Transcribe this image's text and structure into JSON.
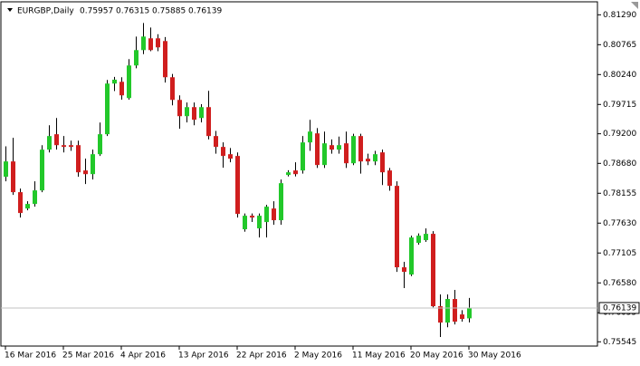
{
  "chart_data": {
    "type": "candlestick",
    "title": "EURGBP,Daily",
    "categories": [
      "16 Mar 2016",
      null,
      null,
      null,
      null,
      null,
      null,
      null,
      "25 Mar 2016",
      null,
      null,
      null,
      null,
      null,
      null,
      null,
      "4 Apr 2016",
      null,
      null,
      null,
      null,
      null,
      null,
      null,
      "13 Apr 2016",
      null,
      null,
      null,
      null,
      null,
      null,
      null,
      "22 Apr 2016",
      null,
      null,
      null,
      null,
      null,
      null,
      null,
      "2 May 2016",
      null,
      null,
      null,
      null,
      null,
      null,
      null,
      "11 May 2016",
      null,
      null,
      null,
      null,
      null,
      null,
      null,
      "20 May 2016",
      null,
      null,
      null,
      null,
      null,
      null,
      null,
      "30 May 2016"
    ],
    "open": [
      0.78444,
      0.78714,
      0.78174,
      0.77887,
      0.77967,
      0.78205,
      0.78921,
      0.79192,
      0.79,
      0.79,
      0.79,
      0.78555,
      0.78491,
      0.78841,
      0.79192,
      0.80082,
      0.80113,
      0.79827,
      0.804,
      0.8067,
      0.80877,
      0.80877,
      0.80829,
      0.80193,
      0.79795,
      0.79509,
      0.79668,
      0.79477,
      0.79668,
      0.7916,
      0.78969,
      0.78841,
      0.7881,
      0.77522,
      0.7776,
      0.77538,
      0.77649,
      0.77887,
      0.77681,
      0.78476,
      0.78555,
      0.78555,
      0.79048,
      0.79207,
      0.78651,
      0.79,
      0.78921,
      0.79032,
      0.78682,
      0.7916,
      0.78762,
      0.78714,
      0.78873,
      0.78555,
      0.78285,
      0.76854,
      0.76727,
      0.77283,
      0.77331,
      0.77442,
      0.7617,
      0.75883,
      0.76297,
      0.76026,
      0.75957
    ],
    "high": [
      0.7898,
      0.79128,
      0.78237,
      0.78014,
      0.78364,
      0.79,
      0.7935,
      0.79477,
      0.7916,
      0.7908,
      0.7908,
      0.78762,
      0.78921,
      0.79398,
      0.80145,
      0.802,
      0.80193,
      0.80511,
      0.80908,
      0.81147,
      0.81067,
      0.8095,
      0.809,
      0.8025,
      0.79875,
      0.7975,
      0.7975,
      0.7972,
      0.79954,
      0.7925,
      0.7905,
      0.7895,
      0.78873,
      0.778,
      0.778,
      0.778,
      0.7795,
      0.78014,
      0.78396,
      0.7856,
      0.787,
      0.7916,
      0.79446,
      0.793,
      0.79239,
      0.791,
      0.7915,
      0.79239,
      0.792,
      0.792,
      0.7885,
      0.789,
      0.78921,
      0.786,
      0.78364,
      0.7695,
      0.7741,
      0.7745,
      0.77538,
      0.7749,
      0.76377,
      0.76377,
      0.76456,
      0.761,
      0.76315
    ],
    "low": [
      0.78364,
      0.78126,
      0.77728,
      0.77856,
      0.77919,
      0.78174,
      0.78873,
      0.78921,
      0.78873,
      0.789,
      0.78444,
      0.78317,
      0.78396,
      0.7881,
      0.7916,
      0.7995,
      0.798,
      0.798,
      0.8035,
      0.806,
      0.8065,
      0.8065,
      0.801,
      0.797,
      0.79287,
      0.794,
      0.7935,
      0.794,
      0.791,
      0.7885,
      0.78603,
      0.787,
      0.77728,
      0.7748,
      0.7765,
      0.77378,
      0.77378,
      0.776,
      0.776,
      0.7845,
      0.7845,
      0.785,
      0.789,
      0.786,
      0.786,
      0.7885,
      0.7885,
      0.786,
      0.7865,
      0.785,
      0.7865,
      0.7865,
      0.783,
      0.782,
      0.76774,
      0.76488,
      0.767,
      0.7725,
      0.773,
      0.7615,
      0.75629,
      0.758,
      0.7585,
      0.759,
      0.75885
    ],
    "close": [
      0.78714,
      0.78174,
      0.77808,
      0.77967,
      0.78205,
      0.78921,
      0.7916,
      0.79,
      0.78969,
      0.78969,
      0.78523,
      0.78491,
      0.78841,
      0.79192,
      0.80082,
      0.8015,
      0.79875,
      0.804,
      0.8067,
      0.80908,
      0.8067,
      0.80718,
      0.80193,
      0.79795,
      0.79509,
      0.79668,
      0.79446,
      0.79668,
      0.7916,
      0.78969,
      0.7881,
      0.78762,
      0.77792,
      0.7776,
      0.77728,
      0.7776,
      0.77919,
      0.77681,
      0.78332,
      0.78523,
      0.78491,
      0.79048,
      0.79239,
      0.78651,
      0.79032,
      0.78921,
      0.79,
      0.78682,
      0.7916,
      0.78714,
      0.78714,
      0.78841,
      0.78523,
      0.78285,
      0.76854,
      0.76774,
      0.77378,
      0.7741,
      0.77442,
      0.7617,
      0.75883,
      0.76297,
      0.75899,
      0.75947,
      0.76139
    ],
    "up_color": "#22c82a",
    "down_color": "#d01e1e",
    "ylim": [
      0.7547,
      0.8155
    ],
    "yticks": [
      {
        "value": 0.8129,
        "label": "0.81290"
      },
      0.80765,
      {
        "value": 0.8024,
        "label": "0.80240"
      },
      0.79715,
      {
        "value": 0.792,
        "label": "0.79200"
      },
      {
        "value": 0.7868,
        "label": "0.78680"
      },
      0.78155,
      {
        "value": 0.7763,
        "label": "0.77630"
      },
      0.77105,
      {
        "value": 0.7658,
        "label": "0.76580"
      },
      0.76055,
      0.75545
    ]
  }
}
